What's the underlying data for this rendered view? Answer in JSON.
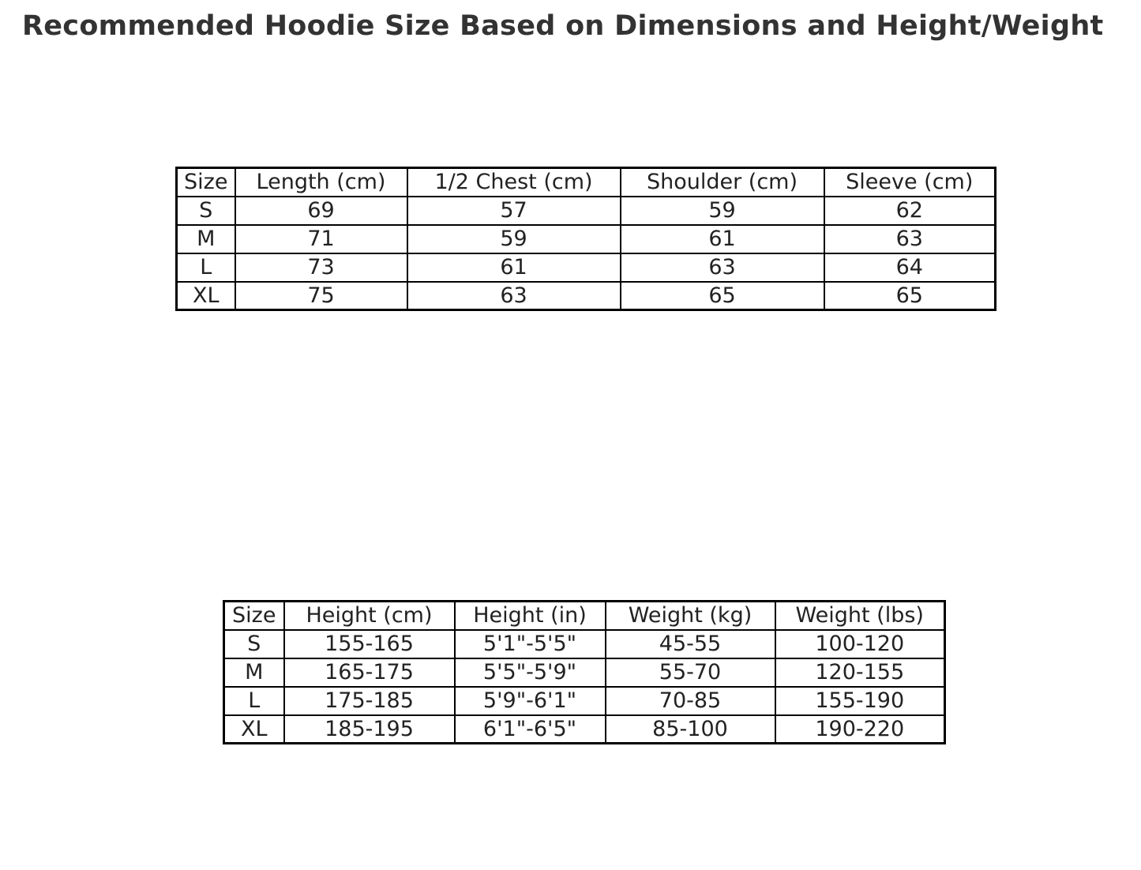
{
  "title": "Recommended Hoodie Size Based on Dimensions and Height/Weight",
  "colors": {
    "text": "#222222",
    "title": "#333333",
    "border": "#000000",
    "background": "#ffffff"
  },
  "chart_data": [
    {
      "type": "table",
      "name": "hoodie-dimensions",
      "columns": [
        "Size",
        "Length (cm)",
        "1/2 Chest (cm)",
        "Shoulder (cm)",
        "Sleeve (cm)"
      ],
      "rows": [
        [
          "S",
          "69",
          "57",
          "59",
          "62"
        ],
        [
          "M",
          "71",
          "59",
          "61",
          "63"
        ],
        [
          "L",
          "73",
          "61",
          "63",
          "64"
        ],
        [
          "XL",
          "75",
          "63",
          "65",
          "65"
        ]
      ]
    },
    {
      "type": "table",
      "name": "height-weight-recommendation",
      "columns": [
        "Size",
        "Height (cm)",
        "Height (in)",
        "Weight (kg)",
        "Weight (lbs)"
      ],
      "rows": [
        [
          "S",
          "155-165",
          "5'1\"-5'5\"",
          "45-55",
          "100-120"
        ],
        [
          "M",
          "165-175",
          "5'5\"-5'9\"",
          "55-70",
          "120-155"
        ],
        [
          "L",
          "175-185",
          "5'9\"-6'1\"",
          "70-85",
          "155-190"
        ],
        [
          "XL",
          "185-195",
          "6'1\"-6'5\"",
          "85-100",
          "190-220"
        ]
      ]
    }
  ]
}
